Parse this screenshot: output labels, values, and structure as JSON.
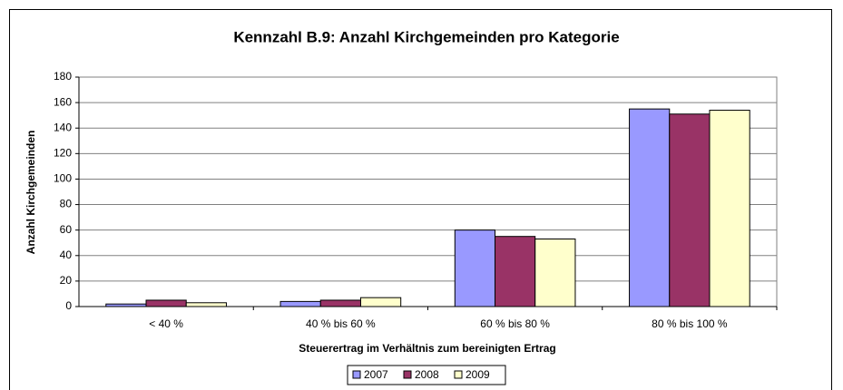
{
  "chart_data": {
    "type": "bar",
    "title": "Kennzahl B.9: Anzahl Kirchgemeinden pro Kategorie",
    "y_label": "Anzahl Kirchgemeinden",
    "x_label": "Steuerertrag im Verhältnis zum bereinigten Ertrag",
    "categories": [
      "< 40 %",
      "40 % bis 60 %",
      "60 % bis 80 %",
      "80 % bis 100 %"
    ],
    "series": [
      {
        "name": "2007",
        "color": "#9999ff",
        "values": [
          2,
          4,
          60,
          155
        ]
      },
      {
        "name": "2008",
        "color": "#993366",
        "values": [
          5,
          5,
          55,
          151
        ]
      },
      {
        "name": "2009",
        "color": "#ffffcc",
        "values": [
          3,
          7,
          53,
          154
        ]
      }
    ],
    "ylim": [
      0,
      180
    ],
    "yticks": [
      0,
      20,
      40,
      60,
      80,
      100,
      120,
      140,
      160,
      180
    ],
    "grid": true,
    "legend": "bottom"
  }
}
